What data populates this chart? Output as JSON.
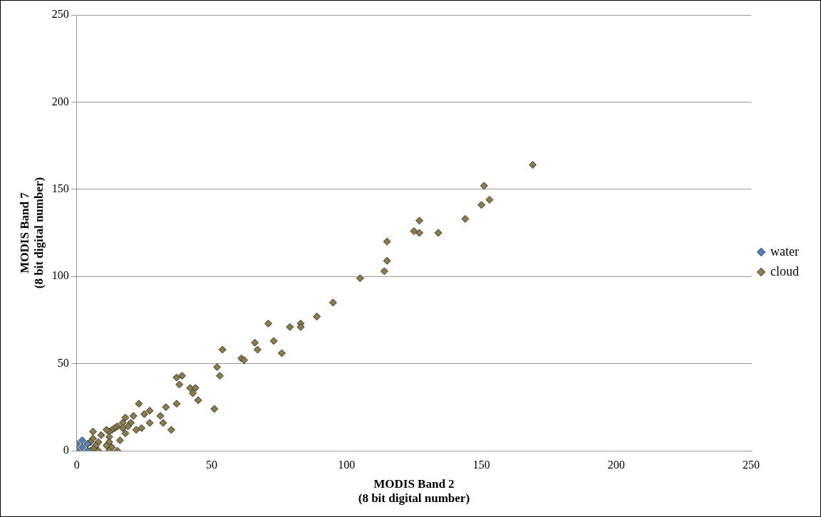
{
  "chart_data": {
    "type": "scatter",
    "xlabel": "MODIS Band 2\n(8 bit digital number)",
    "ylabel": "MODIS Band 7\n(8 bit digital number)",
    "xlim": [
      0,
      250
    ],
    "ylim": [
      0,
      250
    ],
    "xticks": [
      0,
      50,
      100,
      150,
      200,
      250
    ],
    "yticks": [
      0,
      50,
      100,
      150,
      200,
      250
    ],
    "grid": "y",
    "legend": "right",
    "marker": "diamond",
    "series": [
      {
        "name": "water",
        "color": "#4f81bd",
        "x": [
          0,
          0,
          2,
          2,
          4,
          4
        ],
        "values": [
          0,
          4,
          2,
          6,
          0,
          4
        ]
      },
      {
        "name": "cloud",
        "color": "#8b7d4b",
        "x": [
          169,
          151,
          153,
          150,
          144,
          134,
          127,
          127,
          125,
          115,
          115,
          114,
          105,
          95,
          89,
          83,
          83,
          79,
          71,
          73,
          76,
          66,
          67,
          54,
          61,
          62,
          52,
          53,
          51,
          39,
          37,
          38,
          42,
          44,
          43,
          45,
          37,
          33,
          35,
          31,
          32,
          27,
          25,
          23,
          27,
          24,
          22,
          21,
          20,
          19,
          18,
          17,
          17,
          18,
          16,
          15,
          14,
          13,
          12,
          11,
          12,
          12,
          11,
          13,
          15,
          12,
          9,
          8,
          7,
          6,
          6,
          5,
          6,
          4,
          8,
          5
        ],
        "values": [
          164,
          152,
          144,
          141,
          133,
          125,
          132,
          125,
          126,
          120,
          109,
          103,
          99,
          85,
          77,
          73,
          71,
          71,
          73,
          63,
          56,
          62,
          58,
          58,
          53,
          52,
          48,
          43,
          24,
          43,
          42,
          38,
          36,
          36,
          33,
          29,
          27,
          25,
          12,
          20,
          16,
          23,
          21,
          27,
          16,
          13,
          12,
          20,
          16,
          14,
          19,
          16,
          13,
          10,
          6,
          14,
          13,
          12,
          11,
          12,
          8,
          5,
          3,
          2,
          0,
          0,
          9,
          5,
          3,
          11,
          7,
          5,
          1,
          4,
          0,
          0
        ]
      }
    ]
  }
}
